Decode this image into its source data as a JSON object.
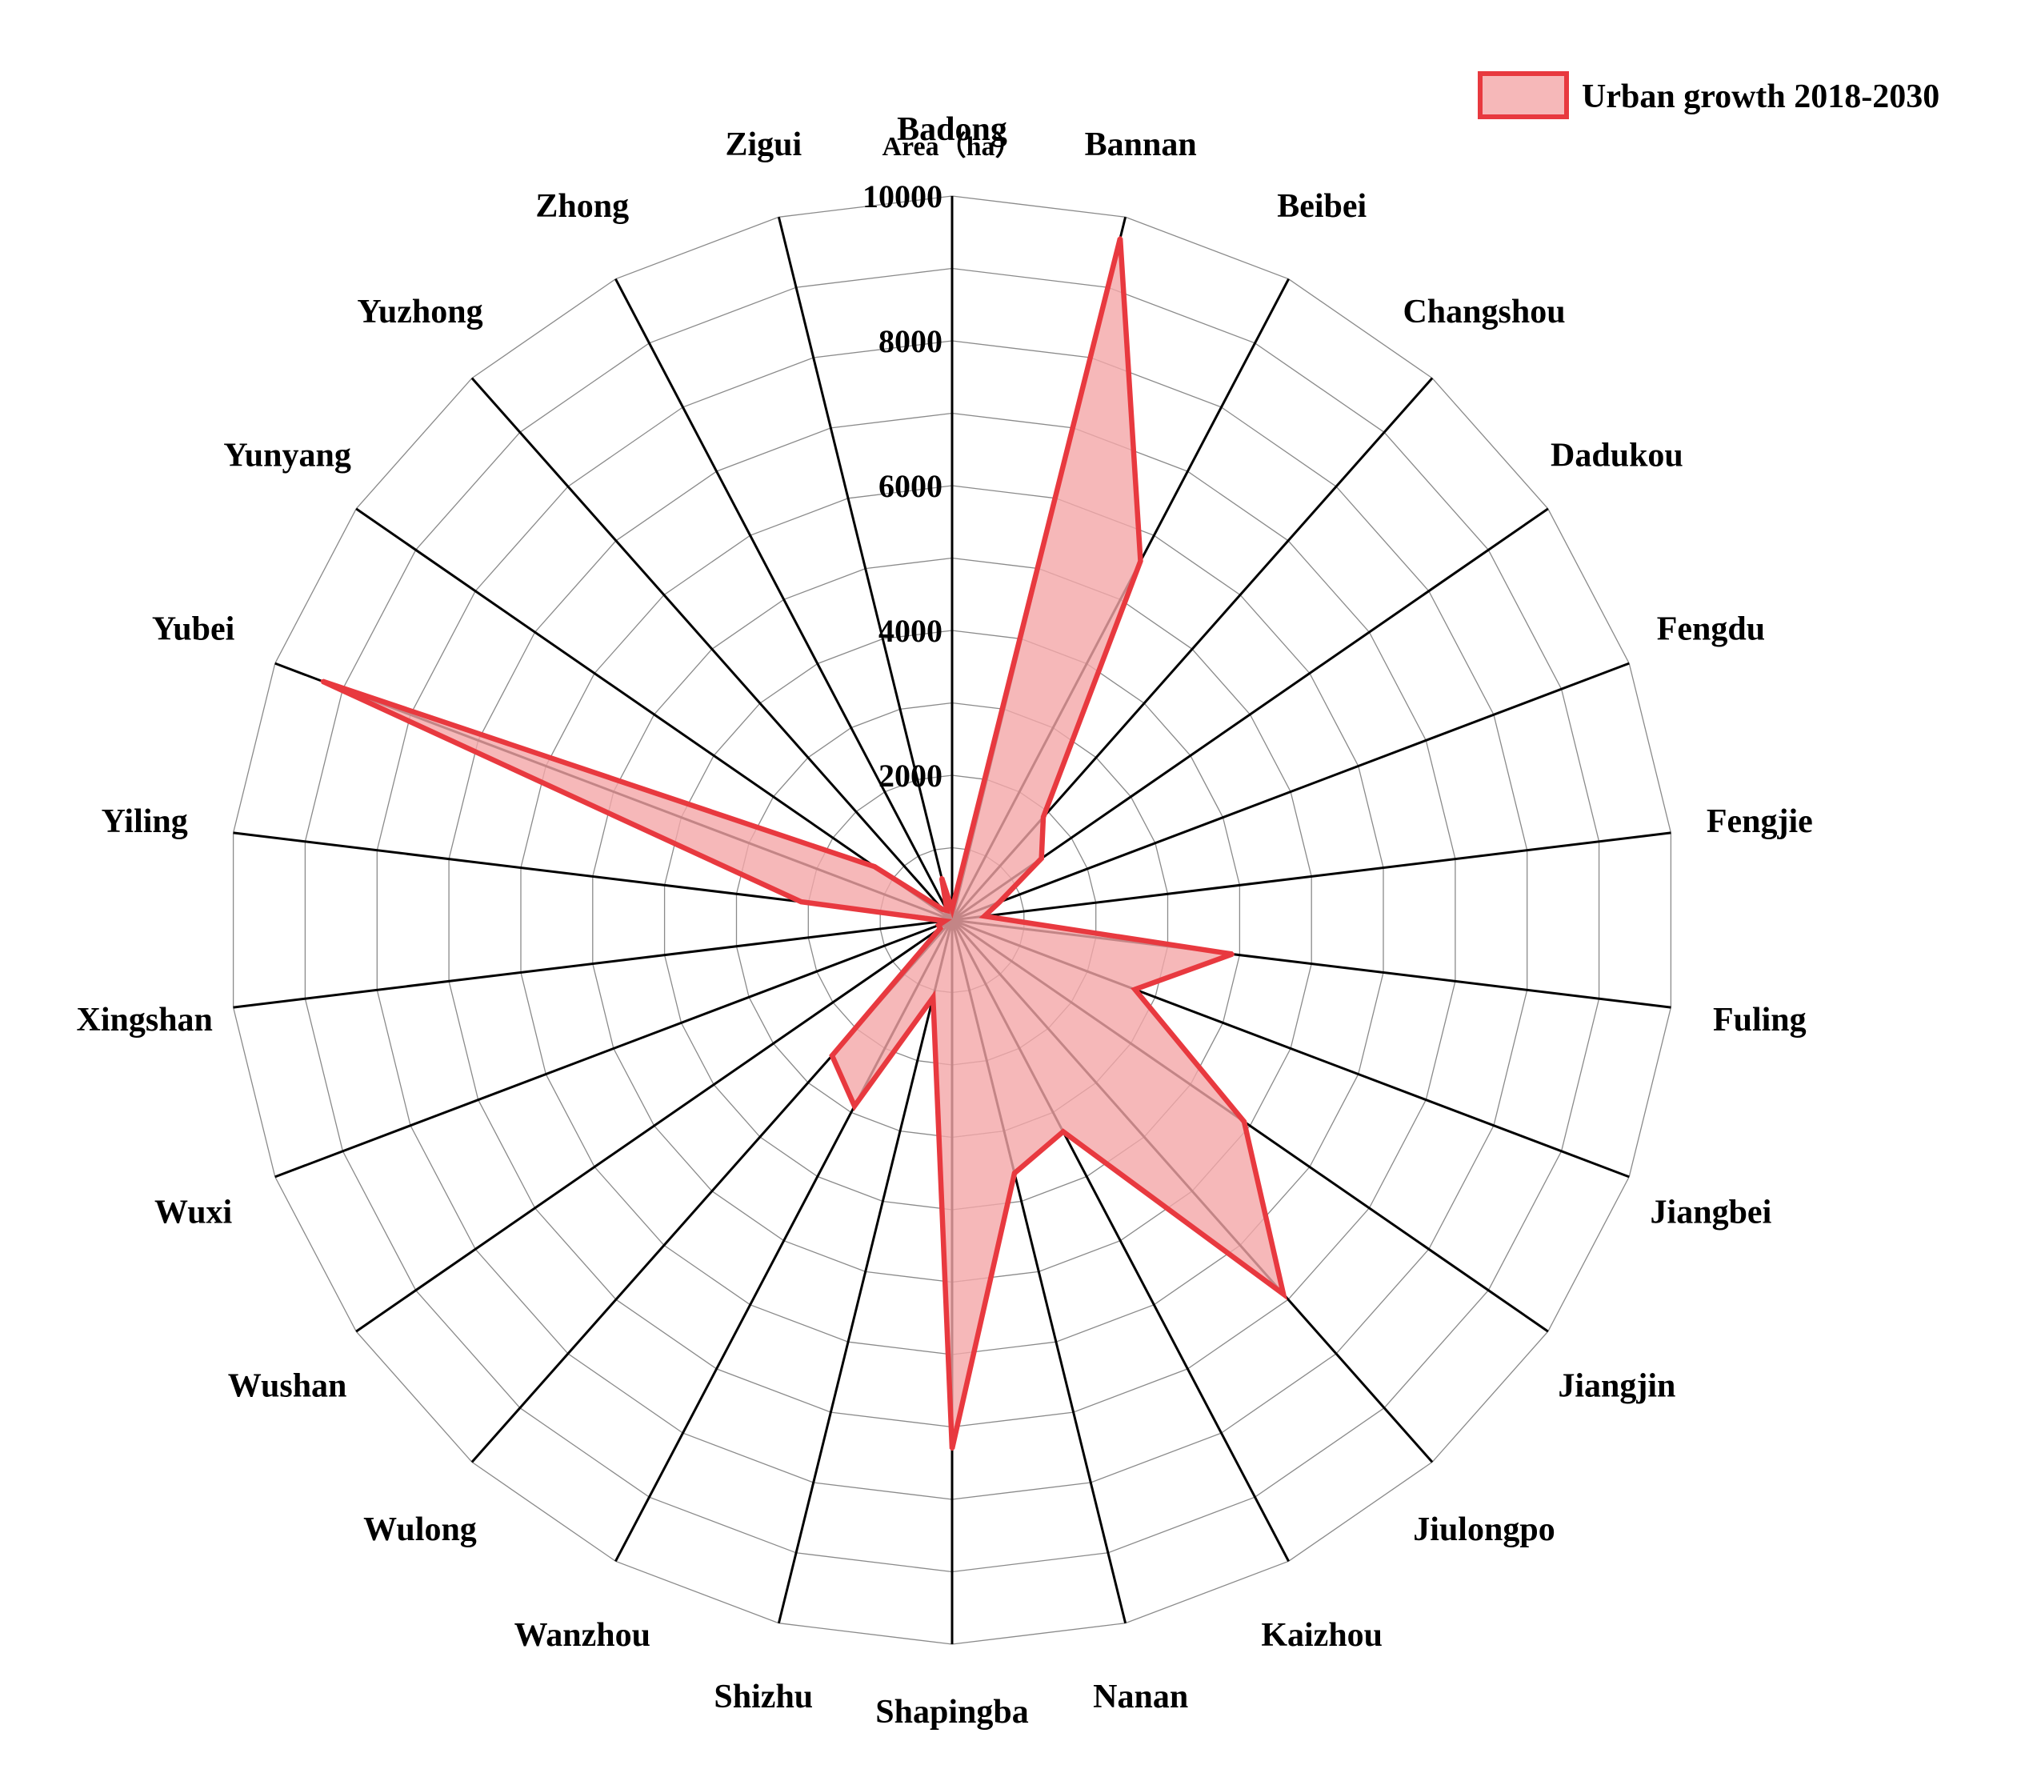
{
  "chart_data": {
    "type": "radar",
    "categories": [
      "Badong",
      "Bannan",
      "Beibei",
      "Changshou",
      "Dadukou",
      "Fengdu",
      "Fengjie",
      "Fuling",
      "Jiangbei",
      "Jiangjin",
      "Jiulongpo",
      "Kaizhou",
      "Nanan",
      "Shapingba",
      "Shizhu",
      "Wanzhou",
      "Wulong",
      "Wushan",
      "Wuxi",
      "Xingshan",
      "Yiling",
      "Yubei",
      "Yunyang",
      "Yuzhong",
      "Zhong",
      "Zigui"
    ],
    "axis_title": "Area（ha）",
    "rlim": [
      0,
      10000
    ],
    "ticks": [
      2000,
      4000,
      6000,
      8000,
      10000
    ],
    "grid_rings": [
      1000,
      2000,
      3000,
      4000,
      5000,
      6000,
      7000,
      8000,
      9000,
      10000
    ],
    "series": [
      {
        "name": "Urban growth 2018-2030",
        "values": [
          150,
          9700,
          5600,
          1900,
          1500,
          700,
          450,
          3900,
          2700,
          4900,
          6900,
          3300,
          3600,
          7300,
          1100,
          2900,
          2500,
          200,
          200,
          100,
          2100,
          9300,
          1300,
          200,
          150,
          600
        ],
        "fill": "#f4a6a8",
        "fill_opacity": 0.8,
        "stroke": "#e8393f"
      }
    ],
    "legend": {
      "position": "top-right"
    }
  }
}
